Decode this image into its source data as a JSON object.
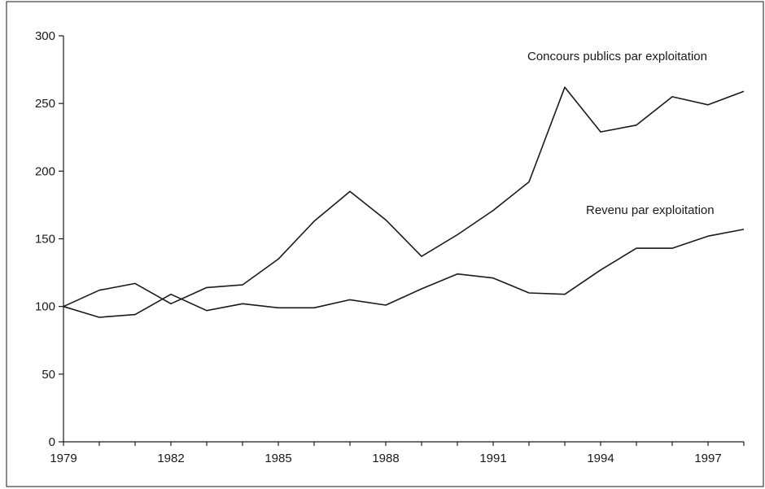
{
  "chart_data": {
    "type": "line",
    "title": "",
    "xlabel": "",
    "ylabel": "",
    "x": [
      1979,
      1980,
      1981,
      1982,
      1983,
      1984,
      1985,
      1986,
      1987,
      1988,
      1989,
      1990,
      1991,
      1992,
      1993,
      1994,
      1995,
      1996,
      1997,
      1998
    ],
    "xticks": [
      "1979",
      "1982",
      "1985",
      "1988",
      "1991",
      "1994",
      "1997"
    ],
    "yticks": [
      "0",
      "50",
      "100",
      "150",
      "200",
      "250",
      "300"
    ],
    "xlim": [
      1979,
      1998
    ],
    "ylim": [
      0,
      300
    ],
    "grid": false,
    "legend": "inline labels near line ends",
    "series": [
      {
        "name": "Concours publics par exploitation",
        "values": [
          100,
          92,
          94,
          109,
          97,
          102,
          99,
          99,
          105,
          101,
          113,
          124,
          121,
          110,
          109,
          127,
          143,
          143,
          152,
          157
        ]
      },
      {
        "name": "Revenu par exploitation",
        "values": [
          100,
          112,
          117,
          102,
          114,
          116,
          135,
          163,
          185,
          164,
          137,
          153,
          171,
          192,
          262,
          229,
          234,
          255,
          249,
          259
        ]
      }
    ]
  }
}
